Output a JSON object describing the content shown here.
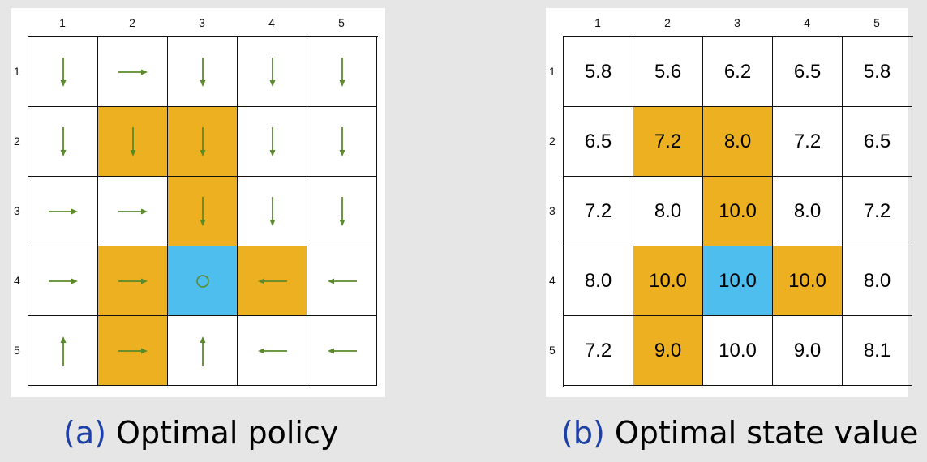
{
  "columns": [
    "1",
    "2",
    "3",
    "4",
    "5"
  ],
  "rows": [
    "1",
    "2",
    "3",
    "4",
    "5"
  ],
  "colors": {
    "forbidden": "#ecb021",
    "target": "#4dbeee",
    "arrow": "#5a8a2a"
  },
  "policy": [
    [
      "down",
      "right",
      "down",
      "down",
      "down"
    ],
    [
      "down",
      "down",
      "down",
      "down",
      "down"
    ],
    [
      "right",
      "right",
      "down",
      "down",
      "down"
    ],
    [
      "right",
      "right",
      "stay",
      "left",
      "left"
    ],
    [
      "up",
      "right",
      "up",
      "left",
      "left"
    ]
  ],
  "cell_types": [
    [
      "normal",
      "normal",
      "normal",
      "normal",
      "normal"
    ],
    [
      "normal",
      "forbidden",
      "forbidden",
      "normal",
      "normal"
    ],
    [
      "normal",
      "normal",
      "forbidden",
      "normal",
      "normal"
    ],
    [
      "normal",
      "forbidden",
      "target",
      "forbidden",
      "normal"
    ],
    [
      "normal",
      "forbidden",
      "normal",
      "normal",
      "normal"
    ]
  ],
  "values": [
    [
      "5.8",
      "5.6",
      "6.2",
      "6.5",
      "5.8"
    ],
    [
      "6.5",
      "7.2",
      "8.0",
      "7.2",
      "6.5"
    ],
    [
      "7.2",
      "8.0",
      "10.0",
      "8.0",
      "7.2"
    ],
    [
      "8.0",
      "10.0",
      "10.0",
      "10.0",
      "8.0"
    ],
    [
      "7.2",
      "9.0",
      "10.0",
      "9.0",
      "8.1"
    ]
  ],
  "captions": {
    "a_letter": "(a)",
    "a_text": "Optimal policy",
    "b_letter": "(b)",
    "b_text": "Optimal state value"
  }
}
